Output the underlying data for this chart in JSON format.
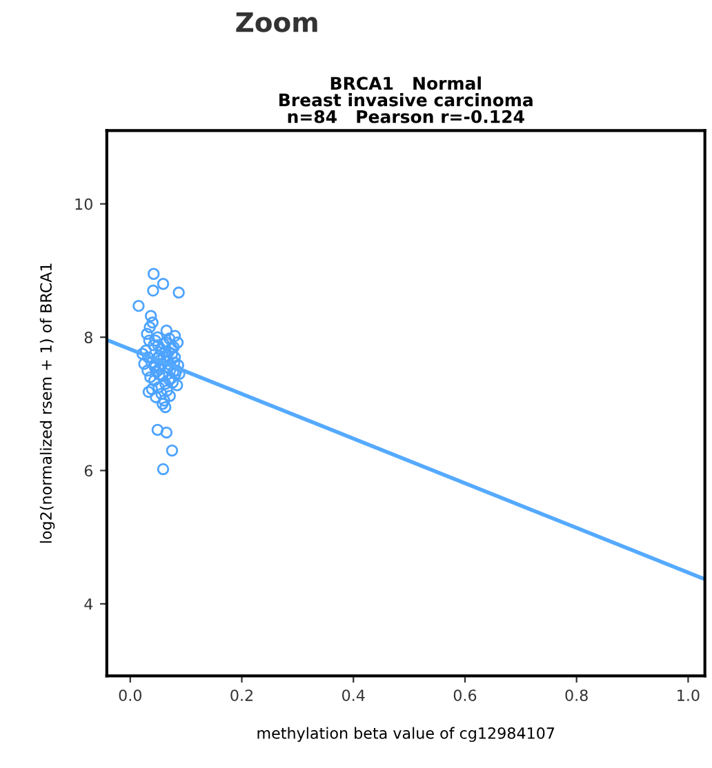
{
  "chart_data": {
    "type": "scatter",
    "title": "BRCA1   Normal\nBreast invasive carcinoma\nn=84   Pearson r=-0.124",
    "xlabel": "methylation beta value of cg12984107",
    "ylabel": "log2(normalized rsem + 1) of BRCA1",
    "annotations": [
      "Zoom"
    ],
    "xlim": [
      -0.042,
      1.03
    ],
    "xticks": [
      {
        "value": 0,
        "label": "0.0"
      },
      0.2,
      0.4,
      0.6,
      0.8,
      {
        "value": 1,
        "label": "1.0"
      }
    ],
    "ylim": [
      2.92,
      11.1
    ],
    "yticks": [
      4,
      6,
      8,
      10
    ],
    "grid": false,
    "marker": "circle",
    "series": [
      {
        "color": "#4da3ff",
        "x": [
          0.042,
          0.059,
          0.041,
          0.087,
          0.015,
          0.037,
          0.049,
          0.065,
          0.075,
          0.059,
          0.03,
          0.035,
          0.04,
          0.045,
          0.05,
          0.055,
          0.06,
          0.065,
          0.07,
          0.075,
          0.08,
          0.085,
          0.032,
          0.038,
          0.044,
          0.048,
          0.052,
          0.057,
          0.062,
          0.067,
          0.072,
          0.078,
          0.083,
          0.088,
          0.028,
          0.036,
          0.043,
          0.047,
          0.053,
          0.058,
          0.063,
          0.068,
          0.073,
          0.079,
          0.084,
          0.025,
          0.033,
          0.039,
          0.046,
          0.051,
          0.056,
          0.061,
          0.066,
          0.071,
          0.076,
          0.081,
          0.086,
          0.031,
          0.042,
          0.049,
          0.054,
          0.06,
          0.064,
          0.069,
          0.074,
          0.08,
          0.022,
          0.034,
          0.045,
          0.052,
          0.058,
          0.063,
          0.07,
          0.077
        ],
        "values": [
          8.95,
          8.8,
          8.7,
          8.67,
          8.47,
          8.32,
          6.61,
          6.57,
          6.3,
          6.02,
          8.05,
          8.15,
          8.22,
          7.95,
          7.88,
          7.82,
          7.9,
          8.1,
          7.98,
          7.75,
          8.02,
          7.92,
          7.7,
          7.62,
          7.55,
          7.68,
          7.72,
          7.6,
          7.78,
          7.65,
          7.58,
          7.85,
          7.5,
          7.45,
          7.8,
          7.4,
          7.35,
          7.48,
          7.52,
          7.42,
          7.3,
          7.55,
          7.38,
          7.62,
          7.28,
          7.6,
          7.18,
          7.22,
          7.1,
          7.25,
          7.15,
          7.05,
          7.2,
          7.12,
          7.32,
          7.45,
          7.58,
          7.5,
          7.88,
          8.0,
          7.66,
          7.7,
          7.92,
          7.78,
          7.84,
          7.7,
          7.75,
          7.95,
          7.58,
          7.44,
          7.0,
          6.95,
          7.36,
          7.48
        ]
      },
      {
        "type": "line",
        "color": "#55aaff",
        "marker": "none",
        "line_style": "solid",
        "x": [
          -0.042,
          1.03
        ],
        "values": [
          7.96,
          4.37
        ]
      }
    ]
  }
}
